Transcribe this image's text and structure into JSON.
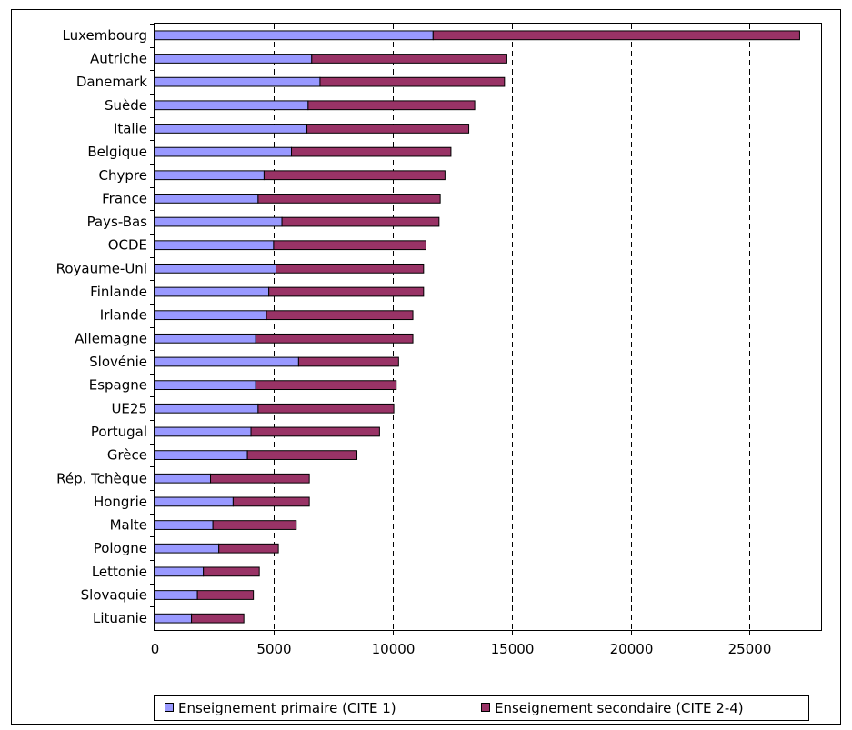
{
  "chart_data": {
    "type": "bar",
    "orientation": "horizontal",
    "stacked": true,
    "categories": [
      "Luxembourg",
      "Autriche",
      "Danemark",
      "Suède",
      "Italie",
      "Belgique",
      "Chypre",
      "France",
      "Pays-Bas",
      "OCDE",
      "Royaume-Uni",
      "Finlande",
      "Irlande",
      "Allemagne",
      "Slovénie",
      "Espagne",
      "UE25",
      "Portugal",
      "Grèce",
      "Rép. Tchèque",
      "Hongrie",
      "Malte",
      "Pologne",
      "Lettonie",
      "Slovaquie",
      "Lituanie"
    ],
    "series": [
      {
        "name": "Enseignement primaire (CITE 1)",
        "color": "#9999ff",
        "values": [
          11700,
          6600,
          6950,
          6450,
          6400,
          5750,
          4600,
          4350,
          5350,
          5000,
          5100,
          4800,
          4700,
          4250,
          6050,
          4250,
          4350,
          4050,
          3900,
          2350,
          3300,
          2450,
          2700,
          2050,
          1800,
          1550
        ]
      },
      {
        "name": "Enseignement secondaire (CITE 2-4)",
        "color": "#993366",
        "values": [
          15400,
          8200,
          7750,
          7000,
          6800,
          6700,
          7600,
          7650,
          6600,
          6400,
          6200,
          6500,
          6150,
          6600,
          4200,
          5900,
          5700,
          5400,
          4600,
          4150,
          3200,
          3500,
          2500,
          2350,
          2350,
          2200
        ]
      }
    ],
    "xticks": [
      "0",
      "5000",
      "10000",
      "15000",
      "20000",
      "25000"
    ],
    "xlim": [
      0,
      28000
    ],
    "grid": "vertical dashed at major ticks",
    "legend_position": "bottom"
  }
}
